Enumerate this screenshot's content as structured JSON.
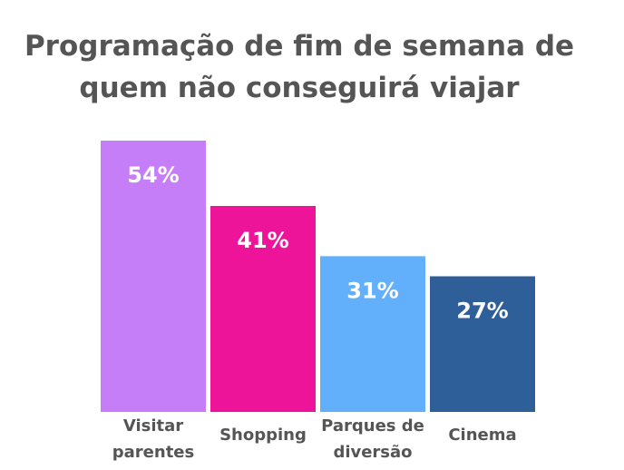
{
  "chart_data": {
    "type": "bar",
    "title_lines": [
      "Programação de fim de semana de",
      "quem não conseguirá viajar"
    ],
    "categories": [
      [
        "Visitar",
        "parentes"
      ],
      [
        "Shopping"
      ],
      [
        "Parques de",
        "diversão"
      ],
      [
        "Cinema"
      ]
    ],
    "values": [
      54,
      41,
      31,
      27
    ],
    "value_labels": [
      "54%",
      "41%",
      "31%",
      "27%"
    ],
    "colors": [
      "#c67df8",
      "#ee1499",
      "#62b0fb",
      "#2f5f98"
    ],
    "xlabel": "",
    "ylabel": "",
    "ylim": [
      0,
      54
    ],
    "grid": false,
    "legend": "none"
  }
}
